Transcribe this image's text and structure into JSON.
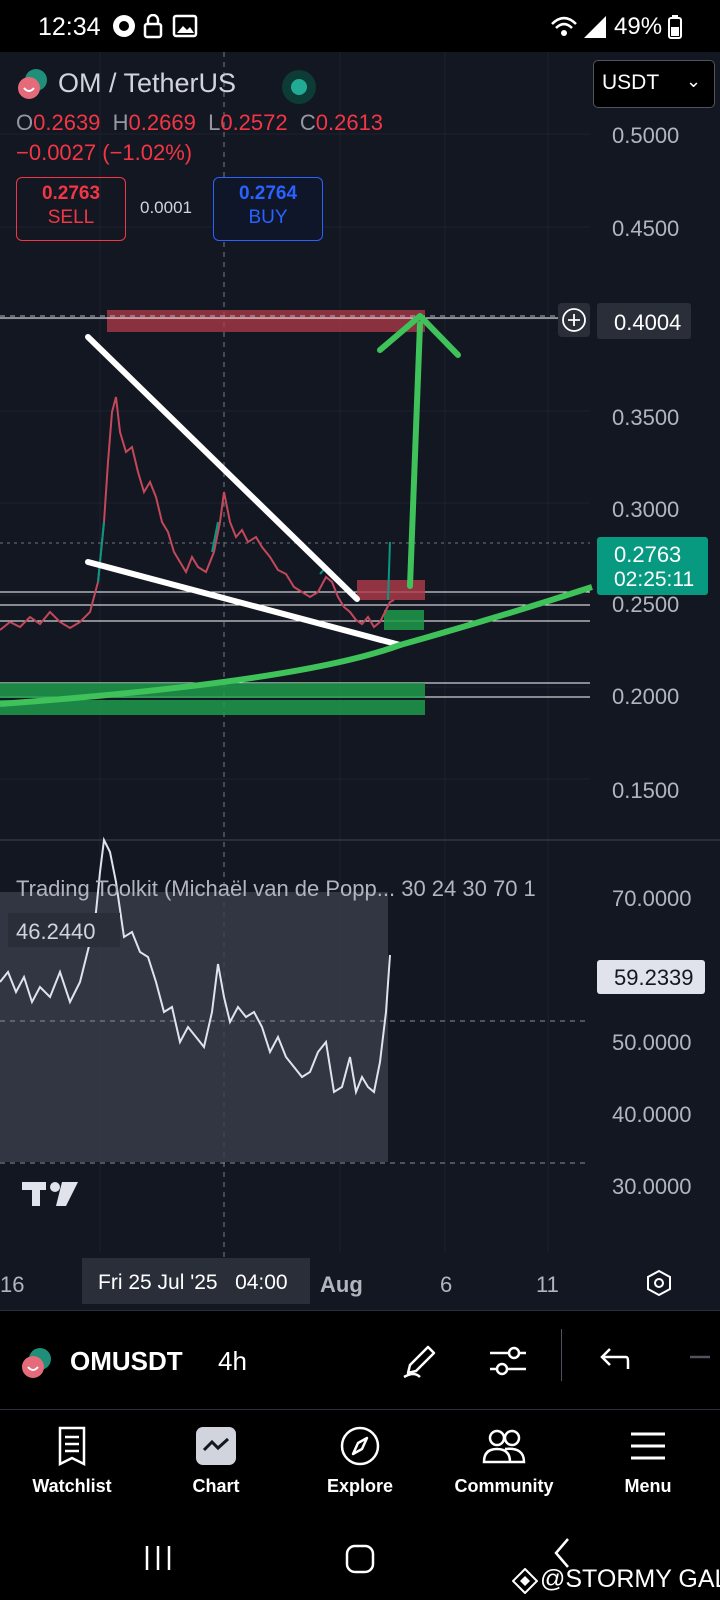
{
  "status_bar": {
    "time": "12:34",
    "battery": "49%"
  },
  "header": {
    "symbol": "OM / TetherUS",
    "currency": "USDT",
    "ohlc": {
      "o_label": "O",
      "o": "0.2639",
      "h_label": "H",
      "h": "0.2669",
      "l_label": "L",
      "l": "0.2572",
      "c_label": "C",
      "c": "0.2613"
    },
    "change": "−0.0027 (−1.02%)",
    "sell": {
      "price": "0.2763",
      "label": "SELL"
    },
    "spread": "0.0001",
    "buy": {
      "price": "0.2764",
      "label": "BUY"
    }
  },
  "price_axis": {
    "ticks": [
      "0.5000",
      "0.4500",
      "0.4004",
      "0.3500",
      "0.3000",
      "0.2500",
      "0.2000",
      "0.1500"
    ],
    "current_price": "0.2763",
    "countdown": "02:25:11"
  },
  "indicator": {
    "title": "Trading Toolkit (Michaël van de Popp... 30 24 30 70 1",
    "value_left": "46.2440",
    "value_right": "59.2339",
    "ticks": [
      "70.0000",
      "50.0000",
      "40.0000",
      "30.0000"
    ]
  },
  "time_axis": {
    "labels": [
      "16",
      "Aug",
      "6",
      "11"
    ],
    "crosshair_label": "Fri 25 Jul '25   04:00"
  },
  "toolbar": {
    "symbol": "OMUSDT",
    "interval": "4h"
  },
  "bottom_nav": {
    "items": [
      {
        "label": "Watchlist"
      },
      {
        "label": "Chart"
      },
      {
        "label": "Explore"
      },
      {
        "label": "Community"
      },
      {
        "label": "Menu"
      }
    ]
  },
  "watermark": "@STORMY GAL",
  "colors": {
    "up": "#089981",
    "down": "#f23645",
    "buy": "#2962ff",
    "background": "#131722"
  }
}
